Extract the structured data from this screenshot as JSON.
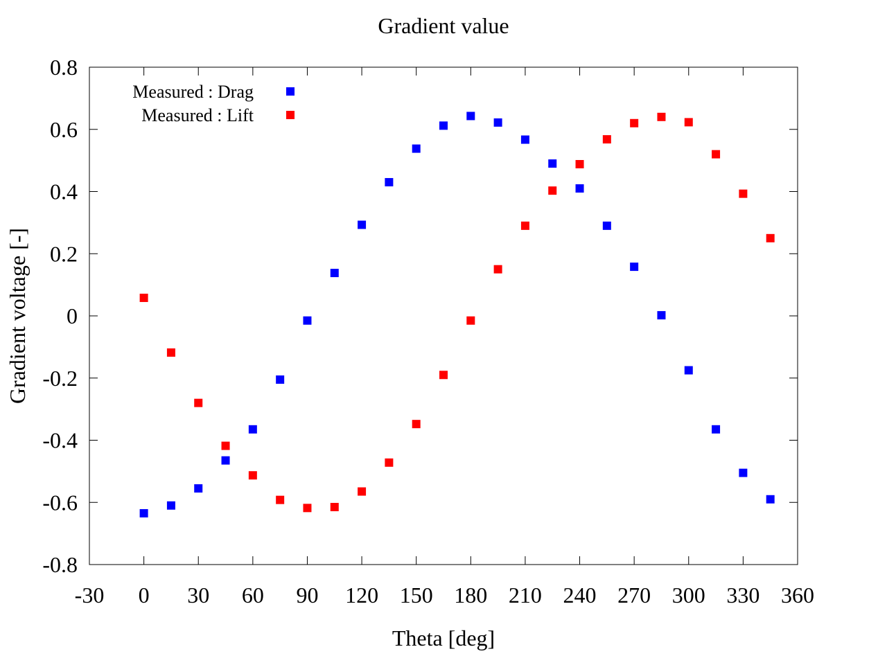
{
  "chart_data": {
    "type": "scatter",
    "title": "Gradient value",
    "xlabel": "Theta [deg]",
    "ylabel": "Gradient voltage [-]",
    "xlim": [
      -30,
      360
    ],
    "ylim": [
      -0.8,
      0.8
    ],
    "xticks": [
      -30,
      0,
      30,
      60,
      90,
      120,
      150,
      180,
      210,
      240,
      270,
      300,
      330,
      360
    ],
    "yticks": [
      -0.8,
      -0.6,
      -0.4,
      -0.2,
      0,
      0.2,
      0.4,
      0.6,
      0.8
    ],
    "xtick_labels": [
      "-30",
      "0",
      "30",
      "60",
      "90",
      "120",
      "150",
      "180",
      "210",
      "240",
      "270",
      "300",
      "330",
      "360"
    ],
    "ytick_labels": [
      "-0.8",
      "-0.6",
      "-0.4",
      "-0.2",
      "0",
      "0.2",
      "0.4",
      "0.6",
      "0.8"
    ],
    "grid": false,
    "legend_position": "top-left",
    "series": [
      {
        "name": "Measured : Drag",
        "color": "#0000ff",
        "x": [
          0,
          15,
          30,
          45,
          60,
          75,
          90,
          105,
          120,
          135,
          150,
          165,
          180,
          195,
          210,
          225,
          240,
          255,
          270,
          285,
          300,
          315,
          330,
          345
        ],
        "y": [
          -0.635,
          -0.61,
          -0.555,
          -0.465,
          -0.365,
          -0.205,
          -0.015,
          0.138,
          0.293,
          0.43,
          0.538,
          0.612,
          0.643,
          0.622,
          0.567,
          0.49,
          0.41,
          0.29,
          0.158,
          0.002,
          -0.175,
          -0.365,
          -0.505,
          -0.59
        ]
      },
      {
        "name": "Measured : Lift",
        "color": "#ff0000",
        "x": [
          0,
          15,
          30,
          45,
          60,
          75,
          90,
          105,
          120,
          135,
          150,
          165,
          180,
          195,
          210,
          225,
          240,
          255,
          270,
          285,
          300,
          315,
          330,
          345
        ],
        "y": [
          0.058,
          -0.118,
          -0.28,
          -0.418,
          -0.513,
          -0.592,
          -0.618,
          -0.615,
          -0.565,
          -0.472,
          -0.348,
          -0.19,
          -0.015,
          0.15,
          0.29,
          0.403,
          0.488,
          0.568,
          0.62,
          0.64,
          0.623,
          0.52,
          0.393,
          0.25
        ]
      }
    ]
  }
}
